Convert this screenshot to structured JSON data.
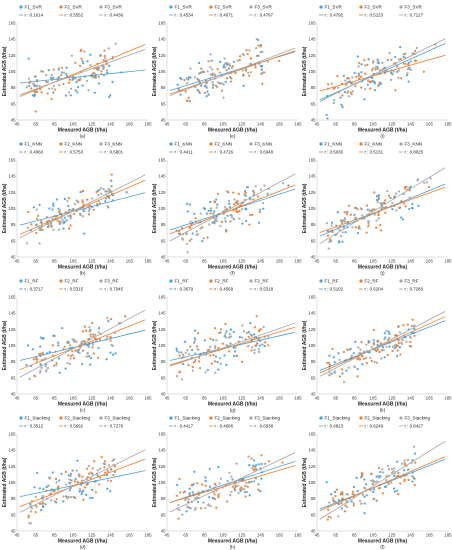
{
  "figure": {
    "xlabel": "Measured AGB  (t/ha)",
    "ylabel": "Estimated AGB (t/ha)",
    "x_ticks": [
      "45",
      "65",
      "85",
      "105",
      "125",
      "145",
      "165",
      "185"
    ],
    "y_ticks": [
      "45",
      "65",
      "85",
      "105",
      "125",
      "145",
      "165"
    ],
    "colors": {
      "F1": "#4a9fdc",
      "F2": "#f07d2b",
      "F3": "#a5a5a5"
    }
  },
  "chart_data": [
    {
      "type": "scatter",
      "label": "(a)",
      "xlim": [
        45,
        185
      ],
      "ylim": [
        45,
        165
      ],
      "series": [
        {
          "name": "F1_SVR",
          "r_text": "r : 0.1614",
          "slope": 0.12,
          "intercept": 85
        },
        {
          "name": "F2_SVR",
          "r_text": "r : 0.5552",
          "slope": 0.48,
          "intercept": 51
        },
        {
          "name": "F3_SVR",
          "r_text": "r : 0.4436",
          "slope": 0.42,
          "intercept": 56
        }
      ]
    },
    {
      "type": "scatter",
      "label": "(e)",
      "xlim": [
        45,
        185
      ],
      "ylim": [
        45,
        165
      ],
      "series": [
        {
          "name": "F1_SVR",
          "r_text": "r : 0.4534",
          "slope": 0.36,
          "intercept": 64
        },
        {
          "name": "F2_SVR",
          "r_text": "r : 0.4671",
          "slope": 0.4,
          "intercept": 58
        },
        {
          "name": "F3_SVR",
          "r_text": "r : 0.4797",
          "slope": 0.44,
          "intercept": 54
        }
      ]
    },
    {
      "type": "scatter",
      "label": "(i)",
      "xlim": [
        45,
        185
      ],
      "ylim": [
        45,
        165
      ],
      "series": [
        {
          "name": "F1_SVR",
          "r_text": "r : 0.4792",
          "slope": 0.52,
          "intercept": 45
        },
        {
          "name": "F2_SVR",
          "r_text": "r : 0.5123",
          "slope": 0.33,
          "intercept": 65
        },
        {
          "name": "F3_SVR",
          "r_text": "r : 0.7127",
          "slope": 0.58,
          "intercept": 40
        }
      ]
    },
    {
      "type": "scatter",
      "label": "(b)",
      "xlim": [
        45,
        185
      ],
      "ylim": [
        45,
        165
      ],
      "series": [
        {
          "name": "F1_KNN",
          "r_text": "r : 0.4060",
          "slope": 0.3,
          "intercept": 70
        },
        {
          "name": "F2_KNN",
          "r_text": "r : 0.5753",
          "slope": 0.5,
          "intercept": 49
        },
        {
          "name": "F3_KNN",
          "r_text": "r : 0.6801",
          "slope": 0.58,
          "intercept": 41
        }
      ]
    },
    {
      "type": "scatter",
      "label": "(f)",
      "xlim": [
        45,
        185
      ],
      "ylim": [
        45,
        165
      ],
      "series": [
        {
          "name": "F1_KNN",
          "r_text": "r : 0.4411",
          "slope": 0.38,
          "intercept": 60
        },
        {
          "name": "F2_KNN",
          "r_text": "r : 0.4726",
          "slope": 0.45,
          "intercept": 52
        },
        {
          "name": "F3_KNN",
          "r_text": "r : 0.6948",
          "slope": 0.62,
          "intercept": 35
        }
      ]
    },
    {
      "type": "scatter",
      "label": "(j)",
      "xlim": [
        45,
        185
      ],
      "ylim": [
        45,
        165
      ],
      "series": [
        {
          "name": "F1_KNN",
          "r_text": "r : 0.5030",
          "slope": 0.48,
          "intercept": 48
        },
        {
          "name": "F2_KNN",
          "r_text": "r : 0.5131",
          "slope": 0.42,
          "intercept": 55
        },
        {
          "name": "F3_KNN",
          "r_text": "r : 0.8025",
          "slope": 0.7,
          "intercept": 28
        }
      ]
    },
    {
      "type": "scatter",
      "label": "(c)",
      "xlim": [
        45,
        185
      ],
      "ylim": [
        45,
        165
      ],
      "series": [
        {
          "name": "F1_RF",
          "r_text": "r : 0.3717",
          "slope": 0.28,
          "intercept": 73
        },
        {
          "name": "F2_RF",
          "r_text": "r : 0.5315",
          "slope": 0.46,
          "intercept": 53
        },
        {
          "name": "F3_RF",
          "r_text": "r : 0.7045",
          "slope": 0.62,
          "intercept": 36
        }
      ]
    },
    {
      "type": "scatter",
      "label": "(g)",
      "xlim": [
        45,
        185
      ],
      "ylim": [
        45,
        165
      ],
      "series": [
        {
          "name": "F1_RF",
          "r_text": "r : 0.3679",
          "slope": 0.26,
          "intercept": 74
        },
        {
          "name": "F2_RF",
          "r_text": "r : 0.4569",
          "slope": 0.35,
          "intercept": 64
        },
        {
          "name": "F3_RF",
          "r_text": "r : 0.5318",
          "slope": 0.4,
          "intercept": 60
        }
      ]
    },
    {
      "type": "scatter",
      "label": "(k)",
      "xlim": [
        45,
        185
      ],
      "ylim": [
        45,
        165
      ],
      "series": [
        {
          "name": "F1_RF",
          "r_text": "r : 0.5102",
          "slope": 0.46,
          "intercept": 52
        },
        {
          "name": "F2_RF",
          "r_text": "r : 0.6204",
          "slope": 0.52,
          "intercept": 46
        },
        {
          "name": "F3_RF",
          "r_text": "r : 0.7280",
          "slope": 0.6,
          "intercept": 38
        }
      ]
    },
    {
      "type": "scatter",
      "label": "(d)",
      "xlim": [
        45,
        185
      ],
      "ylim": [
        45,
        165
      ],
      "series": [
        {
          "name": "F1_Stacking",
          "r_text": "r : 0.3512",
          "slope": 0.24,
          "intercept": 76
        },
        {
          "name": "F2_Stacking",
          "r_text": "r : 0.5692",
          "slope": 0.44,
          "intercept": 54
        },
        {
          "name": "F3_Stacking",
          "r_text": "r : 0.7279",
          "slope": 0.58,
          "intercept": 40
        }
      ]
    },
    {
      "type": "scatter",
      "label": "(h)",
      "xlim": [
        45,
        185
      ],
      "ylim": [
        45,
        165
      ],
      "series": [
        {
          "name": "F1_Stacking",
          "r_text": "r : 0.4417",
          "slope": 0.38,
          "intercept": 62
        },
        {
          "name": "F2_Stacking",
          "r_text": "r : 0.4686",
          "slope": 0.34,
          "intercept": 64
        },
        {
          "name": "F3_Stacking",
          "r_text": "r : 0.6938",
          "slope": 0.55,
          "intercept": 42
        }
      ]
    },
    {
      "type": "scatter",
      "label": "(l)",
      "xlim": [
        45,
        185
      ],
      "ylim": [
        45,
        165
      ],
      "series": [
        {
          "name": "F1_Stacking",
          "r_text": "r : 0.4823",
          "slope": 0.46,
          "intercept": 50
        },
        {
          "name": "F2_Stacking",
          "r_text": "r : 0.6249",
          "slope": 0.5,
          "intercept": 46
        },
        {
          "name": "F3_Stacking",
          "r_text": "r : 0.8427",
          "slope": 0.72,
          "intercept": 25
        }
      ]
    }
  ]
}
